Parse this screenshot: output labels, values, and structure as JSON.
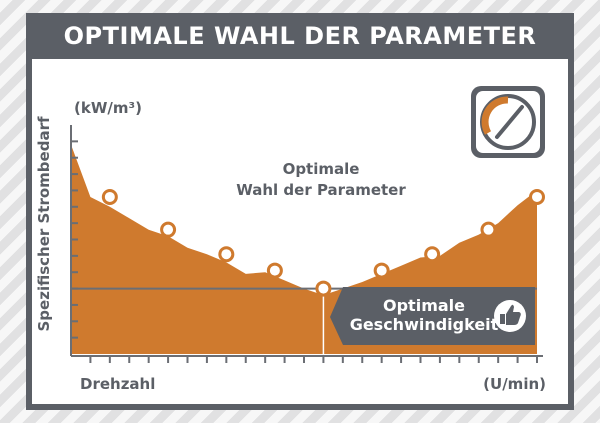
{
  "title": "OPTIMALE WAHL DER PARAMETER",
  "icon": "speedometer-icon",
  "colors": {
    "accent": "#cf7a2e",
    "frame": "#5b5f66",
    "line": "#6b6e74",
    "label_bg": "#5b5f66"
  },
  "chart_data": {
    "type": "area",
    "title": "",
    "xlabel": "Drehzahl",
    "ylabel": "Spezifischer Strombedarf",
    "x_unit": "(U/min)",
    "y_unit": "(kW/m³)",
    "x": [
      0,
      1,
      2,
      3,
      4,
      5,
      6,
      7,
      8,
      9,
      10,
      11,
      12,
      13,
      14,
      15,
      16,
      17,
      18,
      19,
      20,
      21,
      22,
      23,
      24
    ],
    "y": [
      12.8,
      9.6,
      9.0,
      8.3,
      7.6,
      7.2,
      6.5,
      6.1,
      5.6,
      4.9,
      5.0,
      4.5,
      4.0,
      3.6,
      4.0,
      4.4,
      4.9,
      5.4,
      5.9,
      6.0,
      6.8,
      7.3,
      8.0,
      9.1,
      10.0
    ],
    "markers": [
      {
        "x": 2,
        "y": 9.6
      },
      {
        "x": 5,
        "y": 7.6
      },
      {
        "x": 8,
        "y": 6.1
      },
      {
        "x": 10.5,
        "y": 5.1
      },
      {
        "x": 13,
        "y": 4.0
      },
      {
        "x": 16,
        "y": 5.1
      },
      {
        "x": 18.6,
        "y": 6.1
      },
      {
        "x": 21.5,
        "y": 7.6
      },
      {
        "x": 24,
        "y": 9.6
      }
    ],
    "optimum": {
      "x": 13,
      "y": 4.0
    },
    "xlim": [
      0,
      24
    ],
    "ylim": [
      0,
      14
    ],
    "annotation": [
      "Optimale",
      "Wahl der Parameter"
    ],
    "optimum_label": [
      "Optimale",
      "Geschwindigkeit"
    ],
    "optimum_icon": "thumbs-up-icon",
    "grid": false
  }
}
